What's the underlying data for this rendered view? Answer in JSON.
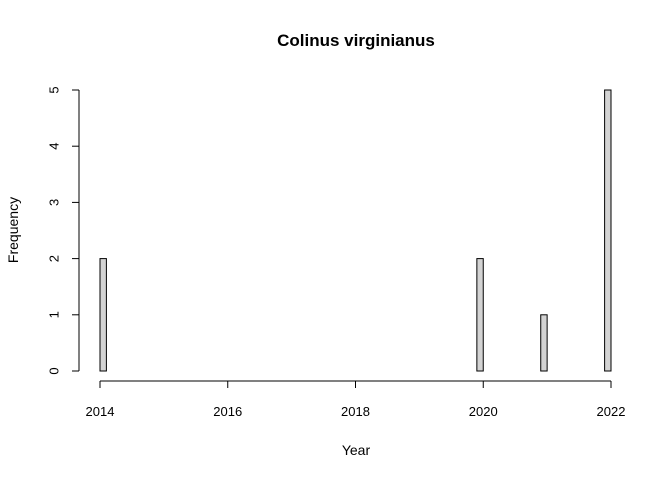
{
  "chart_data": {
    "type": "bar",
    "title": "Colinus virginianus",
    "xlabel": "Year",
    "ylabel": "Frequency",
    "xlim": [
      2014,
      2022
    ],
    "ylim": [
      0,
      5
    ],
    "x_ticks": [
      "2014",
      "2016",
      "2018",
      "2020",
      "2022"
    ],
    "y_ticks": [
      "0",
      "1",
      "2",
      "3",
      "4",
      "5"
    ],
    "bin_width": 0.1,
    "bars": [
      {
        "x_start": 2014.0,
        "x_end": 2014.1,
        "value": 2
      },
      {
        "x_start": 2019.9,
        "x_end": 2020.0,
        "value": 2
      },
      {
        "x_start": 2020.9,
        "x_end": 2021.0,
        "value": 1
      },
      {
        "x_start": 2021.9,
        "x_end": 2022.0,
        "value": 5
      }
    ],
    "grid": false,
    "legend": "none",
    "bar_color": "#d3d3d3"
  }
}
